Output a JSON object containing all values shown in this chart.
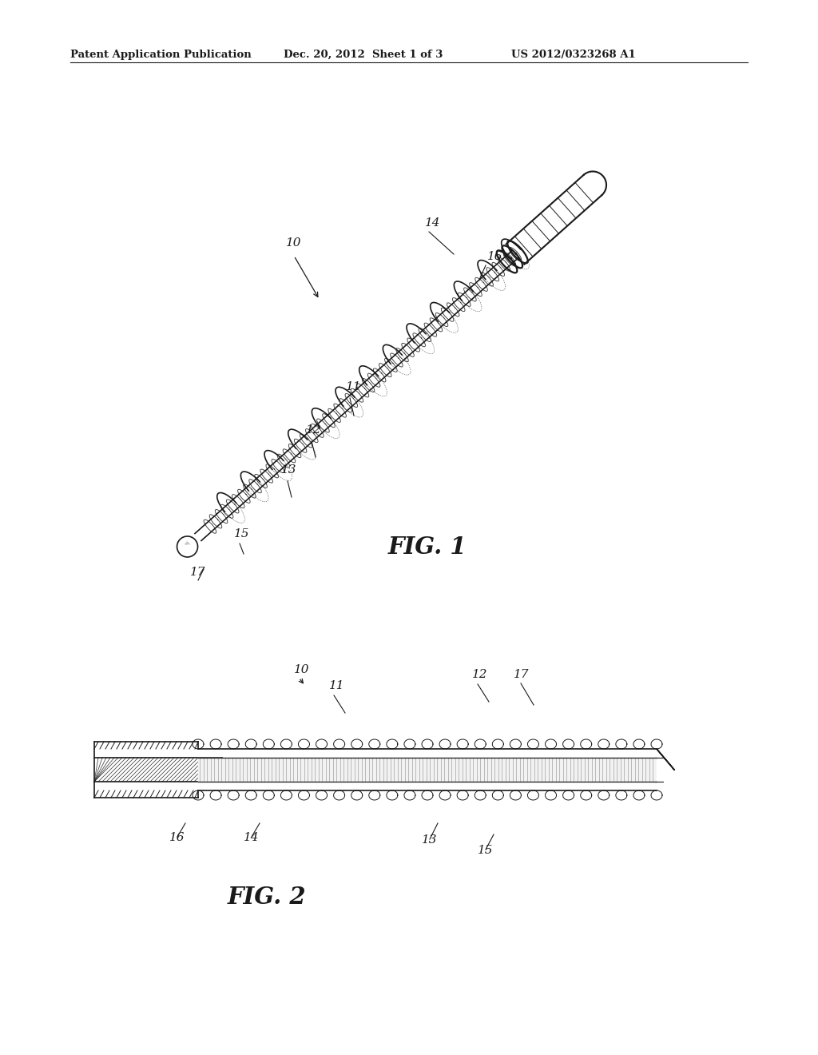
{
  "bg_color": "#ffffff",
  "text_color": "#1a1a1a",
  "header_left": "Patent Application Publication",
  "header_center": "Dec. 20, 2012  Sheet 1 of 3",
  "header_right": "US 2012/0323268 A1",
  "fig1_label": "FIG. 1",
  "fig2_label": "FIG. 2",
  "line_color": "#1a1a1a",
  "line_width": 1.2
}
